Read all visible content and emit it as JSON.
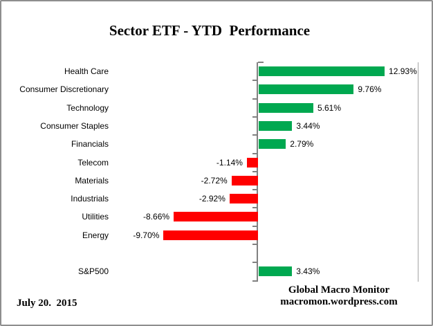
{
  "frame": {
    "border_color": "#8E8E8E",
    "background": "#FFFFFF"
  },
  "title": "Sector ETF - YTD  Performance",
  "chart_data": {
    "type": "bar",
    "orientation": "horizontal",
    "title": "Sector ETF - YTD  Performance",
    "unit": "%",
    "categories": [
      "Health Care",
      "Consumer Discretionary",
      "Technology",
      "Consumer Staples",
      "Financials",
      "Telecom",
      "Materials",
      "Industrials",
      "Utilities",
      "Energy"
    ],
    "values": [
      12.93,
      9.76,
      5.61,
      3.44,
      2.79,
      -1.14,
      -2.72,
      -2.92,
      -8.66,
      -9.7
    ],
    "value_labels": [
      "12.93%",
      "9.76%",
      "5.61%",
      "3.44%",
      "2.79%",
      "-1.14%",
      "-2.72%",
      "-2.92%",
      "-8.66%",
      "-9.70%"
    ],
    "benchmark": {
      "category": "S&P500",
      "value": 3.43,
      "value_label": "3.43%"
    },
    "positive_color": "#00A850",
    "negative_color": "#FF0000",
    "axis_color": "#808080",
    "plot_border_color": "#A3A3A3",
    "xlim": [
      -15,
      16.5
    ],
    "gridlines": false,
    "legend": false,
    "data_labels": "outside-end"
  },
  "footer": {
    "date": "July 20.  2015",
    "brand_line1": "Global Macro Monitor",
    "brand_line2": "macromon.wordpress.com"
  }
}
